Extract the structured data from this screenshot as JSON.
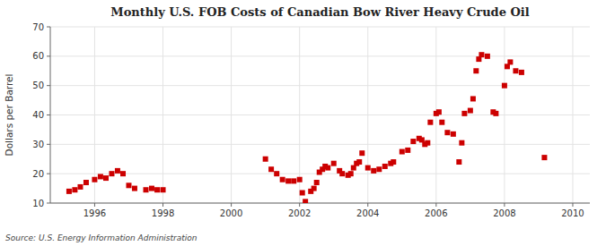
{
  "chart_data": {
    "type": "scatter",
    "title": "Monthly U.S. FOB Costs of Canadian Bow River Heavy Crude Oil",
    "ylabel": "Dollars per Barrel",
    "annotations": [
      "Source: U.S. Energy Information Administration"
    ],
    "color": "#CC0000",
    "marker": "square",
    "grid": true,
    "xlim": [
      1994.7,
      2010.5
    ],
    "ylim": [
      10,
      70
    ],
    "xticks": [
      1996,
      1998,
      2000,
      2002,
      2004,
      2006,
      2008,
      2010
    ],
    "yticks": [
      10,
      20,
      30,
      40,
      50,
      60,
      70
    ],
    "x": [
      1995.25,
      1995.42,
      1995.58,
      1995.75,
      1996.0,
      1996.17,
      1996.33,
      1996.5,
      1996.67,
      1996.83,
      1997.0,
      1997.17,
      1997.5,
      1997.67,
      1997.83,
      1998.0,
      2001.0,
      2001.17,
      2001.33,
      2001.5,
      2001.67,
      2001.83,
      2002.0,
      2002.08,
      2002.17,
      2002.33,
      2002.42,
      2002.5,
      2002.58,
      2002.67,
      2002.75,
      2002.83,
      2003.0,
      2003.17,
      2003.25,
      2003.42,
      2003.5,
      2003.58,
      2003.67,
      2003.75,
      2003.83,
      2004.0,
      2004.17,
      2004.33,
      2004.5,
      2004.67,
      2004.75,
      2005.0,
      2005.17,
      2005.33,
      2005.5,
      2005.58,
      2005.67,
      2005.75,
      2005.83,
      2006.0,
      2006.08,
      2006.17,
      2006.33,
      2006.5,
      2006.67,
      2006.75,
      2006.83,
      2007.0,
      2007.08,
      2007.17,
      2007.25,
      2007.33,
      2007.5,
      2007.67,
      2007.75,
      2008.0,
      2008.08,
      2008.17,
      2008.33,
      2008.5,
      2009.17
    ],
    "values": [
      14.0,
      14.5,
      15.5,
      17.0,
      18.0,
      19.0,
      18.5,
      20.0,
      21.0,
      20.0,
      16.0,
      15.0,
      14.5,
      15.0,
      14.5,
      14.5,
      25.0,
      21.5,
      20.0,
      18.0,
      17.5,
      17.5,
      18.0,
      13.5,
      10.5,
      14.0,
      15.0,
      17.0,
      20.5,
      21.5,
      22.5,
      22.0,
      23.5,
      21.0,
      20.0,
      19.5,
      20.0,
      22.0,
      23.5,
      24.0,
      27.0,
      22.0,
      21.0,
      21.5,
      22.5,
      23.5,
      24.0,
      27.5,
      28.0,
      31.0,
      32.0,
      31.5,
      30.0,
      30.5,
      37.5,
      40.5,
      41.0,
      37.5,
      34.0,
      33.5,
      24.0,
      30.5,
      40.5,
      41.5,
      45.5,
      55.0,
      59.0,
      60.5,
      60.0,
      41.0,
      40.5,
      50.0,
      56.5,
      58.0,
      55.0,
      54.5,
      25.5
    ]
  }
}
